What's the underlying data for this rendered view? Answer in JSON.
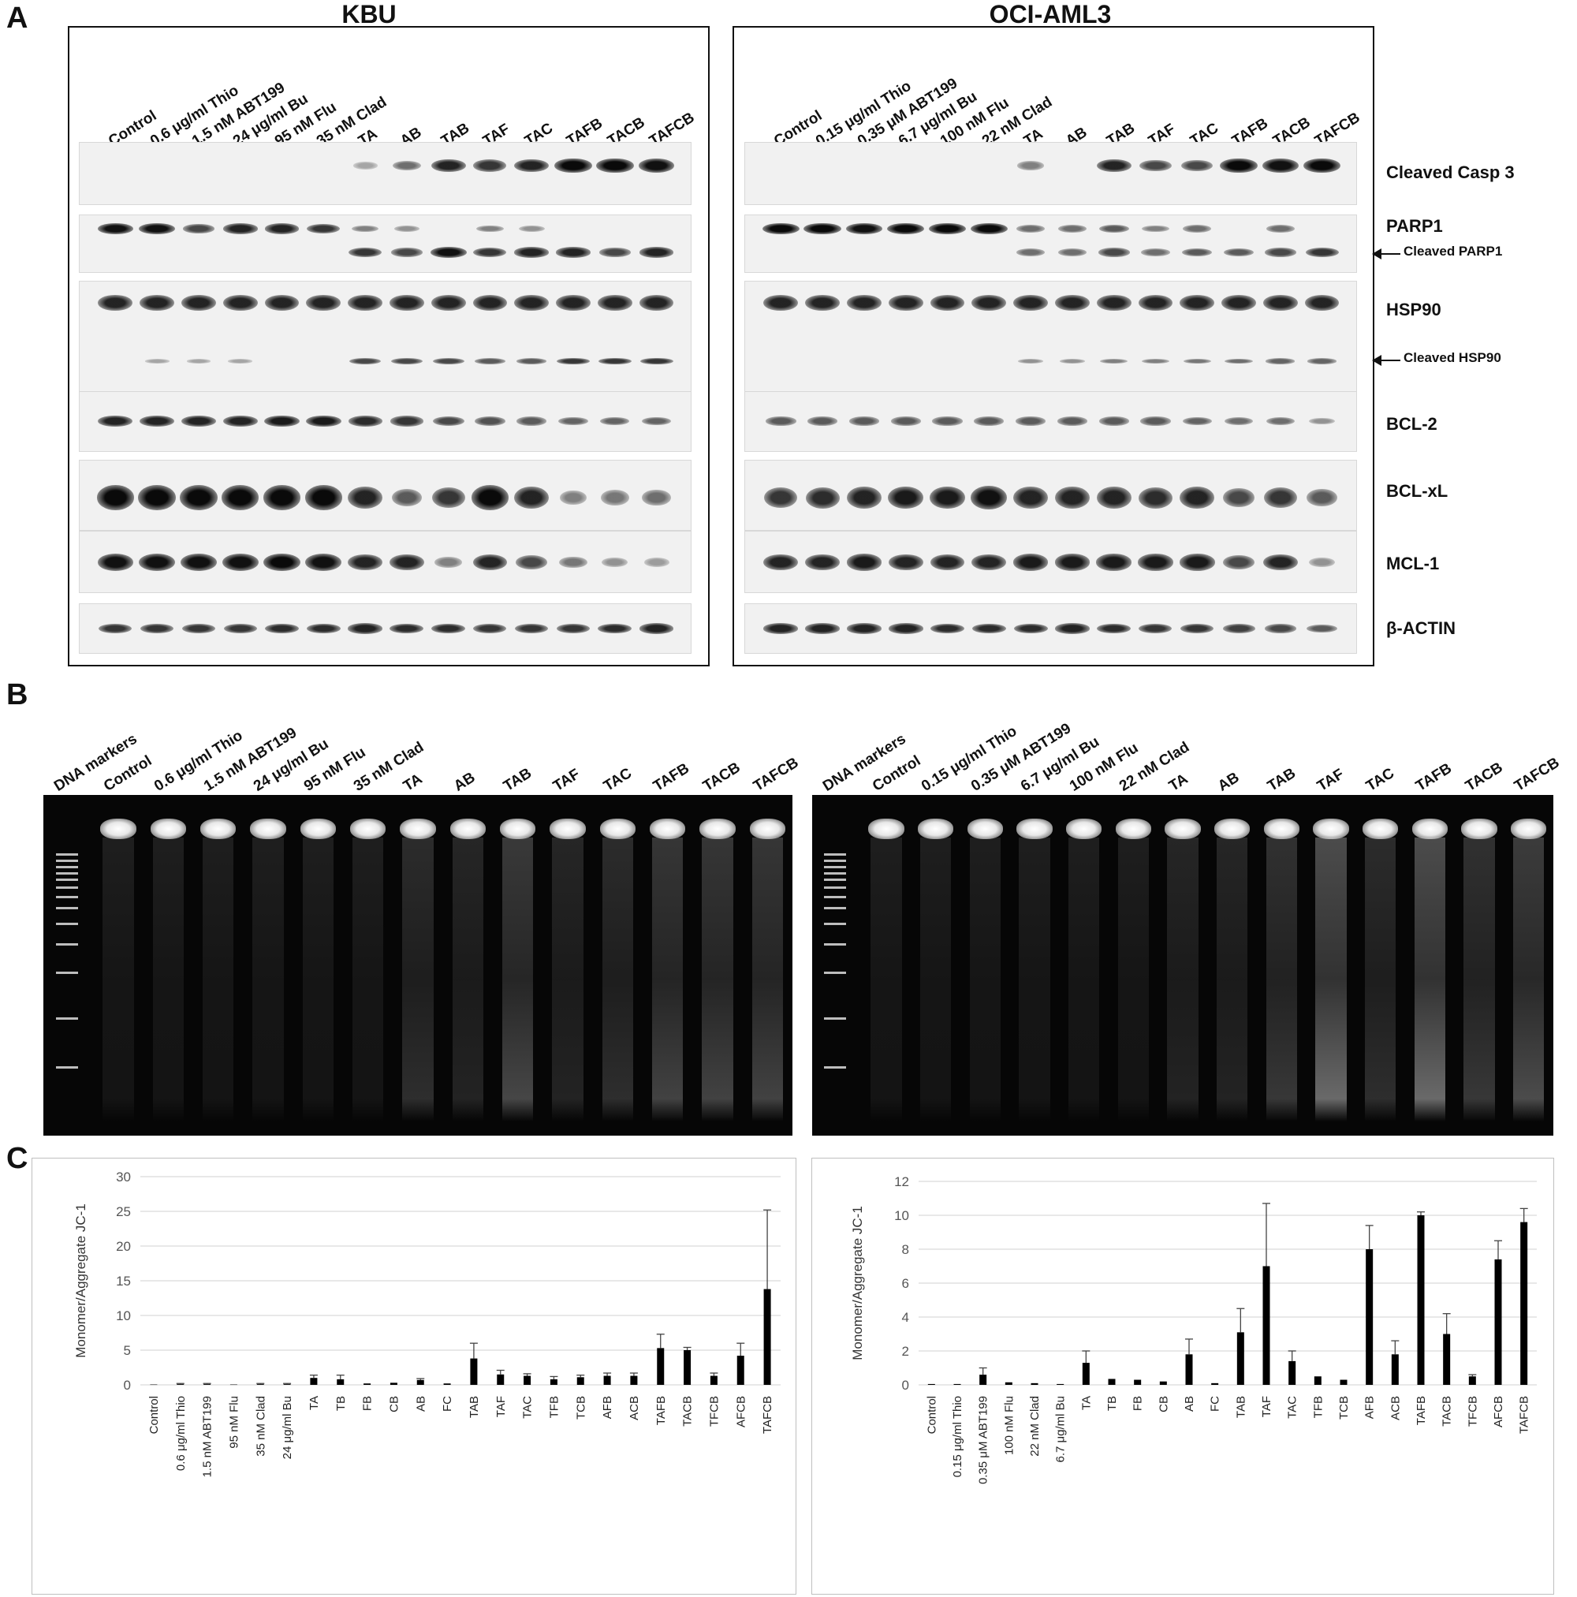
{
  "panels": {
    "a": "A",
    "b": "B",
    "c": "C"
  },
  "western": {
    "left": {
      "title": "KBU",
      "lanes": [
        "Control",
        "0.6 μg/ml Thio",
        "1.5 nM ABT199",
        "24 μg/ml Bu",
        "95 nM Flu",
        "35 nM Clad",
        "TA",
        "AB",
        "TAB",
        "TAF",
        "TAC",
        "TAFB",
        "TACB",
        "TAFCB"
      ],
      "bands": {
        "casp3": [
          0,
          0,
          0,
          0,
          0,
          0,
          0.1,
          0.4,
          0.8,
          0.7,
          0.8,
          1.0,
          1.0,
          0.9
        ],
        "parp1_full": [
          0.9,
          0.9,
          0.6,
          0.8,
          0.8,
          0.7,
          0.3,
          0.2,
          0,
          0.3,
          0.2,
          0,
          0,
          0
        ],
        "parp1_cleaved": [
          0,
          0,
          0,
          0,
          0,
          0,
          0.7,
          0.6,
          0.9,
          0.7,
          0.8,
          0.8,
          0.6,
          0.8
        ],
        "hsp90": [
          0.8,
          0.8,
          0.8,
          0.8,
          0.8,
          0.8,
          0.8,
          0.8,
          0.8,
          0.8,
          0.8,
          0.8,
          0.8,
          0.8
        ],
        "hsp90_cleaved": [
          0,
          0.1,
          0.1,
          0.1,
          0,
          0,
          0.6,
          0.6,
          0.6,
          0.5,
          0.5,
          0.7,
          0.7,
          0.7
        ],
        "bcl2": [
          0.8,
          0.8,
          0.8,
          0.8,
          0.85,
          0.85,
          0.75,
          0.7,
          0.6,
          0.55,
          0.5,
          0.45,
          0.45,
          0.45
        ],
        "bclxl": [
          1.0,
          1.0,
          1.0,
          1.0,
          1.0,
          1.0,
          0.8,
          0.5,
          0.7,
          1.0,
          0.8,
          0.3,
          0.35,
          0.4
        ],
        "mcl1": [
          0.9,
          0.9,
          0.9,
          0.9,
          0.95,
          0.9,
          0.8,
          0.8,
          0.3,
          0.8,
          0.6,
          0.35,
          0.2,
          0.15
        ],
        "actin": [
          0.7,
          0.7,
          0.7,
          0.7,
          0.75,
          0.75,
          0.8,
          0.75,
          0.75,
          0.7,
          0.7,
          0.7,
          0.75,
          0.8
        ]
      }
    },
    "right": {
      "title": "OCI-AML3",
      "lanes": [
        "Control",
        "0.15 μg/ml Thio",
        "0.35 μM ABT199",
        "6.7 μg/ml Bu",
        "100 nM Flu",
        "22 nM Clad",
        "TA",
        "AB",
        "TAB",
        "TAF",
        "TAC",
        "TAFB",
        "TACB",
        "TAFCB"
      ],
      "bands": {
        "casp3": [
          0,
          0,
          0,
          0,
          0,
          0,
          0.3,
          0,
          0.8,
          0.6,
          0.6,
          1.0,
          0.9,
          1.0
        ],
        "parp1_full": [
          1.0,
          1.0,
          0.9,
          1.0,
          1.0,
          1.0,
          0.4,
          0.4,
          0.5,
          0.3,
          0.4,
          0,
          0.4,
          0
        ],
        "parp1_cleaved": [
          0,
          0,
          0,
          0,
          0,
          0,
          0.4,
          0.4,
          0.6,
          0.4,
          0.5,
          0.5,
          0.6,
          0.7
        ],
        "hsp90": [
          0.8,
          0.8,
          0.8,
          0.8,
          0.8,
          0.8,
          0.8,
          0.8,
          0.8,
          0.8,
          0.8,
          0.8,
          0.8,
          0.8
        ],
        "hsp90_cleaved": [
          0,
          0,
          0,
          0,
          0,
          0,
          0.2,
          0.2,
          0.3,
          0.3,
          0.35,
          0.4,
          0.45,
          0.45
        ],
        "bcl2": [
          0.5,
          0.5,
          0.5,
          0.5,
          0.5,
          0.5,
          0.5,
          0.5,
          0.5,
          0.5,
          0.45,
          0.4,
          0.4,
          0.2
        ],
        "bclxl": [
          0.7,
          0.75,
          0.8,
          0.85,
          0.85,
          0.9,
          0.8,
          0.8,
          0.8,
          0.75,
          0.8,
          0.6,
          0.7,
          0.5
        ],
        "mcl1": [
          0.8,
          0.8,
          0.85,
          0.8,
          0.8,
          0.8,
          0.85,
          0.85,
          0.85,
          0.85,
          0.85,
          0.6,
          0.8,
          0.2
        ],
        "actin": [
          0.8,
          0.8,
          0.8,
          0.8,
          0.75,
          0.75,
          0.75,
          0.8,
          0.75,
          0.7,
          0.7,
          0.65,
          0.6,
          0.5
        ]
      }
    },
    "proteins": {
      "casp3": "Cleaved Casp 3",
      "parp1": "PARP1",
      "parp1_cleaved": "Cleaved PARP1",
      "hsp90": "HSP90",
      "hsp90_cleaved": "Cleaved HSP90",
      "bcl2": "BCL-2",
      "bclxl": "BCL-xL",
      "mcl1": "MCL-1",
      "actin": "β-ACTIN"
    }
  },
  "gel": {
    "left": {
      "lanes": [
        "DNA markers",
        "Control",
        "0.6 μg/ml Thio",
        "1.5 nM ABT199",
        "24 μg/ml Bu",
        "95 nM Flu",
        "35 nM Clad",
        "TA",
        "AB",
        "TAB",
        "TAF",
        "TAC",
        "TAFB",
        "TACB",
        "TAFCB"
      ],
      "fragmentation": [
        0,
        0.05,
        0.05,
        0.05,
        0.05,
        0.05,
        0.05,
        0.3,
        0.2,
        0.55,
        0.2,
        0.3,
        0.5,
        0.5,
        0.5
      ]
    },
    "right": {
      "lanes": [
        "DNA markers",
        "Control",
        "0.15 μg/ml Thio",
        "0.35 μM ABT199",
        "6.7 μg/ml Bu",
        "100 nM Flu",
        "22 nM Clad",
        "TA",
        "AB",
        "TAB",
        "TAF",
        "TAC",
        "TAFB",
        "TACB",
        "TAFCB"
      ],
      "fragmentation": [
        0,
        0.05,
        0.05,
        0.05,
        0.05,
        0.05,
        0.05,
        0.2,
        0.2,
        0.4,
        0.9,
        0.3,
        0.9,
        0.4,
        0.6
      ]
    }
  },
  "chart_data": [
    {
      "type": "bar",
      "ylabel": "Monomer/Aggregate JC-1",
      "ylim": [
        0,
        30
      ],
      "yticks": [
        "0",
        "5",
        "10",
        "15",
        "20",
        "25",
        "30"
      ],
      "grid": true,
      "color": "#000000",
      "categories": [
        "Control",
        "0.6 μg/ml Thio",
        "1.5 nM ABT199",
        "95 nM Flu",
        "35 nM Clad",
        "24 μg/ml Bu",
        "TA",
        "TB",
        "FB",
        "CB",
        "AB",
        "FC",
        "TAB",
        "TAF",
        "TAC",
        "TFB",
        "TCB",
        "AFB",
        "ACB",
        "TAFB",
        "TACB",
        "TFCB",
        "AFCB",
        "TAFCB"
      ],
      "values": [
        0.05,
        0.1,
        0.1,
        0.05,
        0.1,
        0.1,
        1.0,
        0.8,
        0.2,
        0.3,
        0.7,
        0.2,
        3.8,
        1.5,
        1.3,
        0.8,
        1.1,
        1.3,
        1.3,
        5.3,
        5.0,
        1.3,
        4.2,
        13.8
      ],
      "errors": [
        0,
        0.1,
        0.1,
        0,
        0.1,
        0.1,
        0.4,
        0.6,
        0,
        0,
        0.2,
        0,
        2.2,
        0.6,
        0.3,
        0.4,
        0.3,
        0.4,
        0.4,
        2.0,
        0.4,
        0.4,
        1.8,
        11.4
      ]
    },
    {
      "type": "bar",
      "ylabel": "Monomer/Aggregate JC-1",
      "ylim": [
        0,
        12
      ],
      "yticks": [
        "0",
        "2",
        "4",
        "6",
        "8",
        "10",
        "12"
      ],
      "grid": true,
      "color": "#000000",
      "categories": [
        "Control",
        "0.15 μg/ml Thio",
        "0.35 μM ABT199",
        "100 nM Flu",
        "22 nM Clad",
        "6.7 μg/ml Bu",
        "TA",
        "TB",
        "FB",
        "CB",
        "AB",
        "FC",
        "TAB",
        "TAF",
        "TAC",
        "TFB",
        "TCB",
        "AFB",
        "ACB",
        "TAFB",
        "TACB",
        "TFCB",
        "AFCB",
        "TAFCB"
      ],
      "values": [
        0.05,
        0.05,
        0.6,
        0.15,
        0.1,
        0.05,
        1.3,
        0.35,
        0.3,
        0.2,
        1.8,
        0.1,
        3.1,
        7.0,
        1.4,
        0.5,
        0.3,
        8.0,
        1.8,
        10.0,
        3.0,
        0.5,
        7.4,
        9.6
      ],
      "errors": [
        0,
        0,
        0.4,
        0,
        0,
        0,
        0.7,
        0,
        0,
        0,
        0.9,
        0,
        1.4,
        3.7,
        0.6,
        0,
        0,
        1.4,
        0.8,
        0.2,
        1.2,
        0.1,
        1.1,
        0.8
      ]
    }
  ]
}
